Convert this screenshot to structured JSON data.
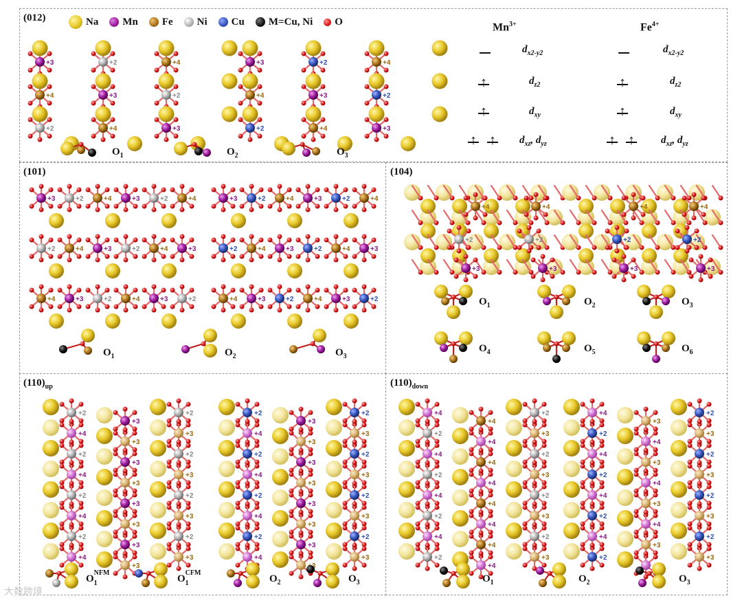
{
  "panels": {
    "p012": {
      "title": "(012)"
    },
    "p101": {
      "title": "(101)"
    },
    "p104": {
      "title": "(104)"
    },
    "p110up": {
      "title": "(110)",
      "sub": "up"
    },
    "p110down": {
      "title": "(110)",
      "sub": "down"
    }
  },
  "legend": [
    {
      "symbol": "Na",
      "color": "#e8c828"
    },
    {
      "symbol": "Mn",
      "color": "#a020a0"
    },
    {
      "symbol": "Fe",
      "color": "#b07820"
    },
    {
      "symbol": "Ni",
      "color": "#b8b8b8"
    },
    {
      "symbol": "Cu",
      "color": "#3858c0"
    },
    {
      "symbol": "M=Cu, Ni",
      "color": "#111111"
    },
    {
      "symbol": "O",
      "color": "#e02020"
    }
  ],
  "orbital_diagram": {
    "ions": [
      {
        "name": "Mn",
        "charge": "3+"
      },
      {
        "name": "Fe",
        "charge": "4+"
      }
    ],
    "levels": [
      {
        "orb": "d",
        "sub": "x2-y2",
        "extra": ""
      },
      {
        "orb": "d",
        "sub": "z2",
        "extra": ""
      },
      {
        "orb": "d",
        "sub": "xy",
        "extra": ""
      },
      {
        "orb": "d",
        "sub": "xz",
        "extra": ", d",
        "sub2": "yz"
      }
    ]
  },
  "oxidation_labels": {
    "mn": "+3",
    "mn4": "+4",
    "fe": "+4",
    "fe3": "+3",
    "ni": "+2",
    "cu": "+2"
  },
  "o_sites": {
    "p012": [
      "O",
      "O",
      "O"
    ],
    "p012_sub": [
      "1",
      "2",
      "3"
    ],
    "p101": [
      "O",
      "O",
      "O"
    ],
    "p101_sub": [
      "1",
      "2",
      "3"
    ],
    "p104": [
      "O",
      "O",
      "O",
      "O",
      "O",
      "O"
    ],
    "p104_sub": [
      "1",
      "2",
      "3",
      "4",
      "5",
      "6"
    ],
    "p110up": [
      "O",
      "O",
      "O",
      "O"
    ],
    "p110up_sub": [
      "1",
      "1",
      "2",
      "3"
    ],
    "p110up_sup": [
      "NFM",
      "CFM",
      "",
      ""
    ],
    "p110down": [
      "O",
      "O",
      "O"
    ],
    "p110down_sub": [
      "1",
      "2",
      "3"
    ]
  },
  "colors": {
    "na": "#e8c828",
    "mn": "#a020a0",
    "fe": "#b07820",
    "ni": "#b8b8b8",
    "cu": "#3858c0",
    "black": "#111111",
    "o": "#e02020",
    "mn_text": "#8a1a8a",
    "fe_text": "#9a6a10",
    "ni_text": "#888888",
    "cu_text": "#3050b0"
  },
  "watermark": "大数跨境"
}
